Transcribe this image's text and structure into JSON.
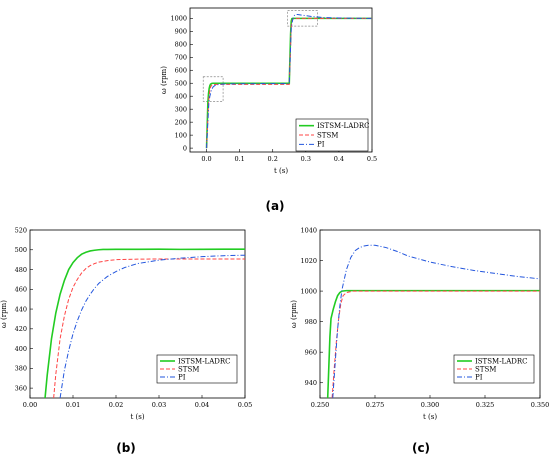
{
  "chart_data": [
    {
      "id": "a",
      "type": "line",
      "caption": "(a)",
      "xlabel": "t (s)",
      "ylabel": "ω (rpm)",
      "xlim": [
        -0.05,
        0.5
      ],
      "ylim": [
        -30,
        1080
      ],
      "xticks": [
        0.0,
        0.1,
        0.2,
        0.3,
        0.4,
        0.5
      ],
      "xtick_labels": [
        "0.0",
        "0.1",
        "0.2",
        "0.3",
        "0.4",
        "0.5"
      ],
      "yticks": [
        0,
        100,
        200,
        300,
        400,
        500,
        600,
        700,
        800,
        900,
        1000
      ],
      "ytick_labels": [
        "0",
        "100",
        "200",
        "300",
        "400",
        "500",
        "600",
        "700",
        "800",
        "900",
        "1000"
      ],
      "legend_position": "bottom-right",
      "zoom_boxes": [
        {
          "x": [
            -0.01,
            0.05
          ],
          "y": [
            360,
            550
          ]
        },
        {
          "x": [
            0.245,
            0.335
          ],
          "y": [
            940,
            1060
          ]
        }
      ],
      "series": [
        {
          "name": "ISTSM-LADRC",
          "color": "#22cc22",
          "dash": "solid",
          "width": 1.6,
          "x": [
            0,
            0.004,
            0.006,
            0.008,
            0.01,
            0.012,
            0.016,
            0.02,
            0.03,
            0.05,
            0.1,
            0.2,
            0.25,
            0.254,
            0.256,
            0.258,
            0.26,
            0.265,
            0.3,
            0.4,
            0.5
          ],
          "y": [
            0,
            350,
            420,
            460,
            482,
            493,
            499,
            500,
            500,
            500,
            500,
            500,
            500,
            880,
            980,
            998,
            1000,
            1000,
            1000,
            1000,
            1000
          ]
        },
        {
          "name": "STSM",
          "color": "#ff4444",
          "dash": "4,2",
          "width": 1,
          "x": [
            0,
            0.006,
            0.008,
            0.01,
            0.012,
            0.014,
            0.016,
            0.02,
            0.03,
            0.05,
            0.1,
            0.2,
            0.25,
            0.256,
            0.258,
            0.26,
            0.262,
            0.265,
            0.3,
            0.4,
            0.5
          ],
          "y": [
            0,
            350,
            405,
            445,
            468,
            480,
            486,
            490,
            491,
            491,
            491,
            491,
            491,
            940,
            975,
            992,
            998,
            1000,
            1000,
            1000,
            1000
          ]
        },
        {
          "name": "PI",
          "color": "#2255dd",
          "dash": "5,2,1,2",
          "width": 1,
          "x": [
            0,
            0.007,
            0.01,
            0.015,
            0.02,
            0.025,
            0.03,
            0.04,
            0.05,
            0.1,
            0.2,
            0.25,
            0.256,
            0.26,
            0.263,
            0.266,
            0.27,
            0.275,
            0.29,
            0.32,
            0.35,
            0.4,
            0.5
          ],
          "y": [
            0,
            350,
            400,
            450,
            472,
            482,
            487,
            492,
            494,
            496,
            497,
            497,
            930,
            985,
            1012,
            1024,
            1029,
            1030,
            1024,
            1014,
            1007,
            1003,
            1000
          ]
        }
      ]
    },
    {
      "id": "b",
      "type": "line",
      "caption": "(b)",
      "xlabel": "t (s)",
      "ylabel": "ω (rpm)",
      "xlim": [
        0.0,
        0.05
      ],
      "ylim": [
        350,
        520
      ],
      "xticks": [
        0.0,
        0.01,
        0.02,
        0.03,
        0.04,
        0.05
      ],
      "xtick_labels": [
        "0.00",
        "0.01",
        "0.02",
        "0.03",
        "0.04",
        "0.05"
      ],
      "yticks": [
        360,
        380,
        400,
        420,
        440,
        460,
        480,
        500,
        520
      ],
      "ytick_labels": [
        "360",
        "380",
        "400",
        "420",
        "440",
        "460",
        "480",
        "500",
        "520"
      ],
      "legend_position": "bottom-right",
      "series": [
        {
          "name": "ISTSM-LADRC",
          "color": "#22cc22",
          "dash": "solid",
          "width": 1.6,
          "x": [
            0.0035,
            0.004,
            0.005,
            0.006,
            0.007,
            0.008,
            0.009,
            0.01,
            0.011,
            0.012,
            0.013,
            0.014,
            0.015,
            0.016,
            0.017,
            0.018,
            0.02,
            0.025,
            0.03,
            0.035,
            0.04,
            0.045,
            0.05
          ],
          "y": [
            350,
            373,
            410,
            436,
            455,
            469,
            480,
            487,
            492,
            495.5,
            497.5,
            498.8,
            499.5,
            500,
            500.3,
            500.3,
            500.5,
            500.5,
            500.6,
            500.4,
            500.5,
            500.6,
            500.6
          ]
        },
        {
          "name": "STSM",
          "color": "#ff4444",
          "dash": "4,2",
          "width": 1,
          "x": [
            0.0055,
            0.006,
            0.007,
            0.008,
            0.009,
            0.01,
            0.011,
            0.012,
            0.013,
            0.014,
            0.015,
            0.016,
            0.018,
            0.02,
            0.025,
            0.03,
            0.035,
            0.04,
            0.045,
            0.05
          ],
          "y": [
            350,
            374,
            410,
            433,
            450,
            462,
            470,
            476.5,
            481,
            484,
            486,
            487.5,
            489,
            490,
            490.5,
            490.7,
            490.7,
            490.7,
            490.7,
            490.7
          ]
        },
        {
          "name": "PI",
          "color": "#2255dd",
          "dash": "5,2,1,2",
          "width": 1,
          "x": [
            0.007,
            0.008,
            0.009,
            0.01,
            0.011,
            0.012,
            0.013,
            0.014,
            0.015,
            0.016,
            0.018,
            0.02,
            0.022,
            0.025,
            0.03,
            0.035,
            0.04,
            0.045,
            0.05
          ],
          "y": [
            350,
            378,
            398,
            415,
            428,
            439,
            448,
            455,
            461,
            466,
            473,
            478,
            482,
            486,
            489.5,
            491.5,
            493,
            494,
            494.5
          ]
        }
      ]
    },
    {
      "id": "c",
      "type": "line",
      "caption": "(c)",
      "xlabel": "t (s)",
      "ylabel": "ω (rpm)",
      "xlim": [
        0.25,
        0.35
      ],
      "ylim": [
        930,
        1040
      ],
      "xticks": [
        0.25,
        0.275,
        0.3,
        0.325,
        0.35
      ],
      "xtick_labels": [
        "0.250",
        "0.275",
        "0.300",
        "0.325",
        "0.350"
      ],
      "yticks": [
        940,
        960,
        980,
        1000,
        1020,
        1040
      ],
      "ytick_labels": [
        "940",
        "960",
        "980",
        "1000",
        "1020",
        "1040"
      ],
      "legend_position": "bottom-right",
      "series": [
        {
          "name": "ISTSM-LADRC",
          "color": "#22cc22",
          "dash": "solid",
          "width": 1.6,
          "x": [
            0.2535,
            0.254,
            0.2545,
            0.255,
            0.256,
            0.257,
            0.258,
            0.259,
            0.26,
            0.262,
            0.265,
            0.27,
            0.28,
            0.3,
            0.32,
            0.35
          ],
          "y": [
            930,
            950,
            970,
            982,
            988,
            993,
            997,
            999,
            1000,
            1000.3,
            1000.3,
            1000.3,
            1000.3,
            1000.3,
            1000.3,
            1000.3
          ]
        },
        {
          "name": "STSM",
          "color": "#ff4444",
          "dash": "4,2",
          "width": 1,
          "x": [
            0.2555,
            0.2565,
            0.2575,
            0.2585,
            0.2595,
            0.2605,
            0.262,
            0.265,
            0.27,
            0.28,
            0.3,
            0.32,
            0.35
          ],
          "y": [
            930,
            950,
            968,
            982,
            992,
            997,
            999,
            1000,
            1000,
            1000,
            1000,
            1000,
            1000
          ]
        },
        {
          "name": "PI",
          "color": "#2255dd",
          "dash": "5,2,1,2",
          "width": 1,
          "x": [
            0.2558,
            0.257,
            0.258,
            0.259,
            0.26,
            0.262,
            0.264,
            0.266,
            0.268,
            0.27,
            0.272,
            0.275,
            0.28,
            0.285,
            0.29,
            0.3,
            0.31,
            0.32,
            0.33,
            0.34,
            0.35
          ],
          "y": [
            930,
            955,
            975,
            990,
            1001,
            1014,
            1022,
            1026.5,
            1028.5,
            1029.5,
            1030,
            1030,
            1028.5,
            1026,
            1023,
            1019,
            1016,
            1013.5,
            1011.5,
            1009.5,
            1008
          ]
        }
      ]
    }
  ]
}
